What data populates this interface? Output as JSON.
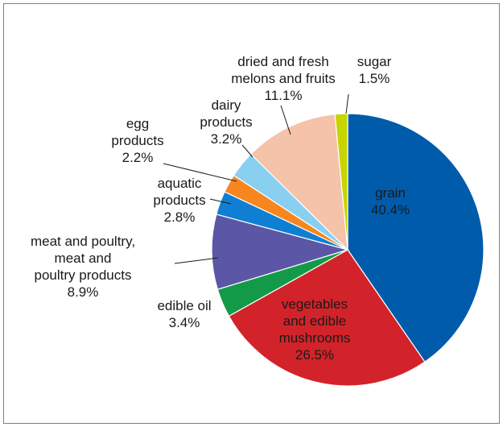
{
  "chart_data": {
    "type": "pie",
    "title": "",
    "categories": [
      "grain",
      "vegetables and edible mushrooms",
      "edible oil",
      "meat and poultry, meat and poultry products",
      "aquatic products",
      "egg products",
      "dairy products",
      "dried and fresh melons and fruits",
      "sugar"
    ],
    "values": [
      40.4,
      26.5,
      3.4,
      8.9,
      2.8,
      2.2,
      3.2,
      11.1,
      1.5
    ],
    "value_labels": [
      "40.4%",
      "26.5%",
      "3.4%",
      "8.9%",
      "2.8%",
      "2.2%",
      "3.2%",
      "11.1%",
      "1.5%"
    ],
    "label_lines": [
      [
        "grain"
      ],
      [
        "vegetables",
        "and edible",
        "mushrooms"
      ],
      [
        "edible oil"
      ],
      [
        "meat and poultry,",
        "meat and",
        "poultry products"
      ],
      [
        "aquatic",
        "products"
      ],
      [
        "egg",
        "products"
      ],
      [
        "dairy",
        "products"
      ],
      [
        "dried and fresh",
        "melons and fruits"
      ],
      [
        "sugar"
      ]
    ],
    "colors": [
      "#005bab",
      "#d2232a",
      "#139a48",
      "#5b57a6",
      "#0f7fd4",
      "#f7861f",
      "#89cff0",
      "#f5c2aa",
      "#c8d400"
    ],
    "legend": "none",
    "grid": false
  }
}
